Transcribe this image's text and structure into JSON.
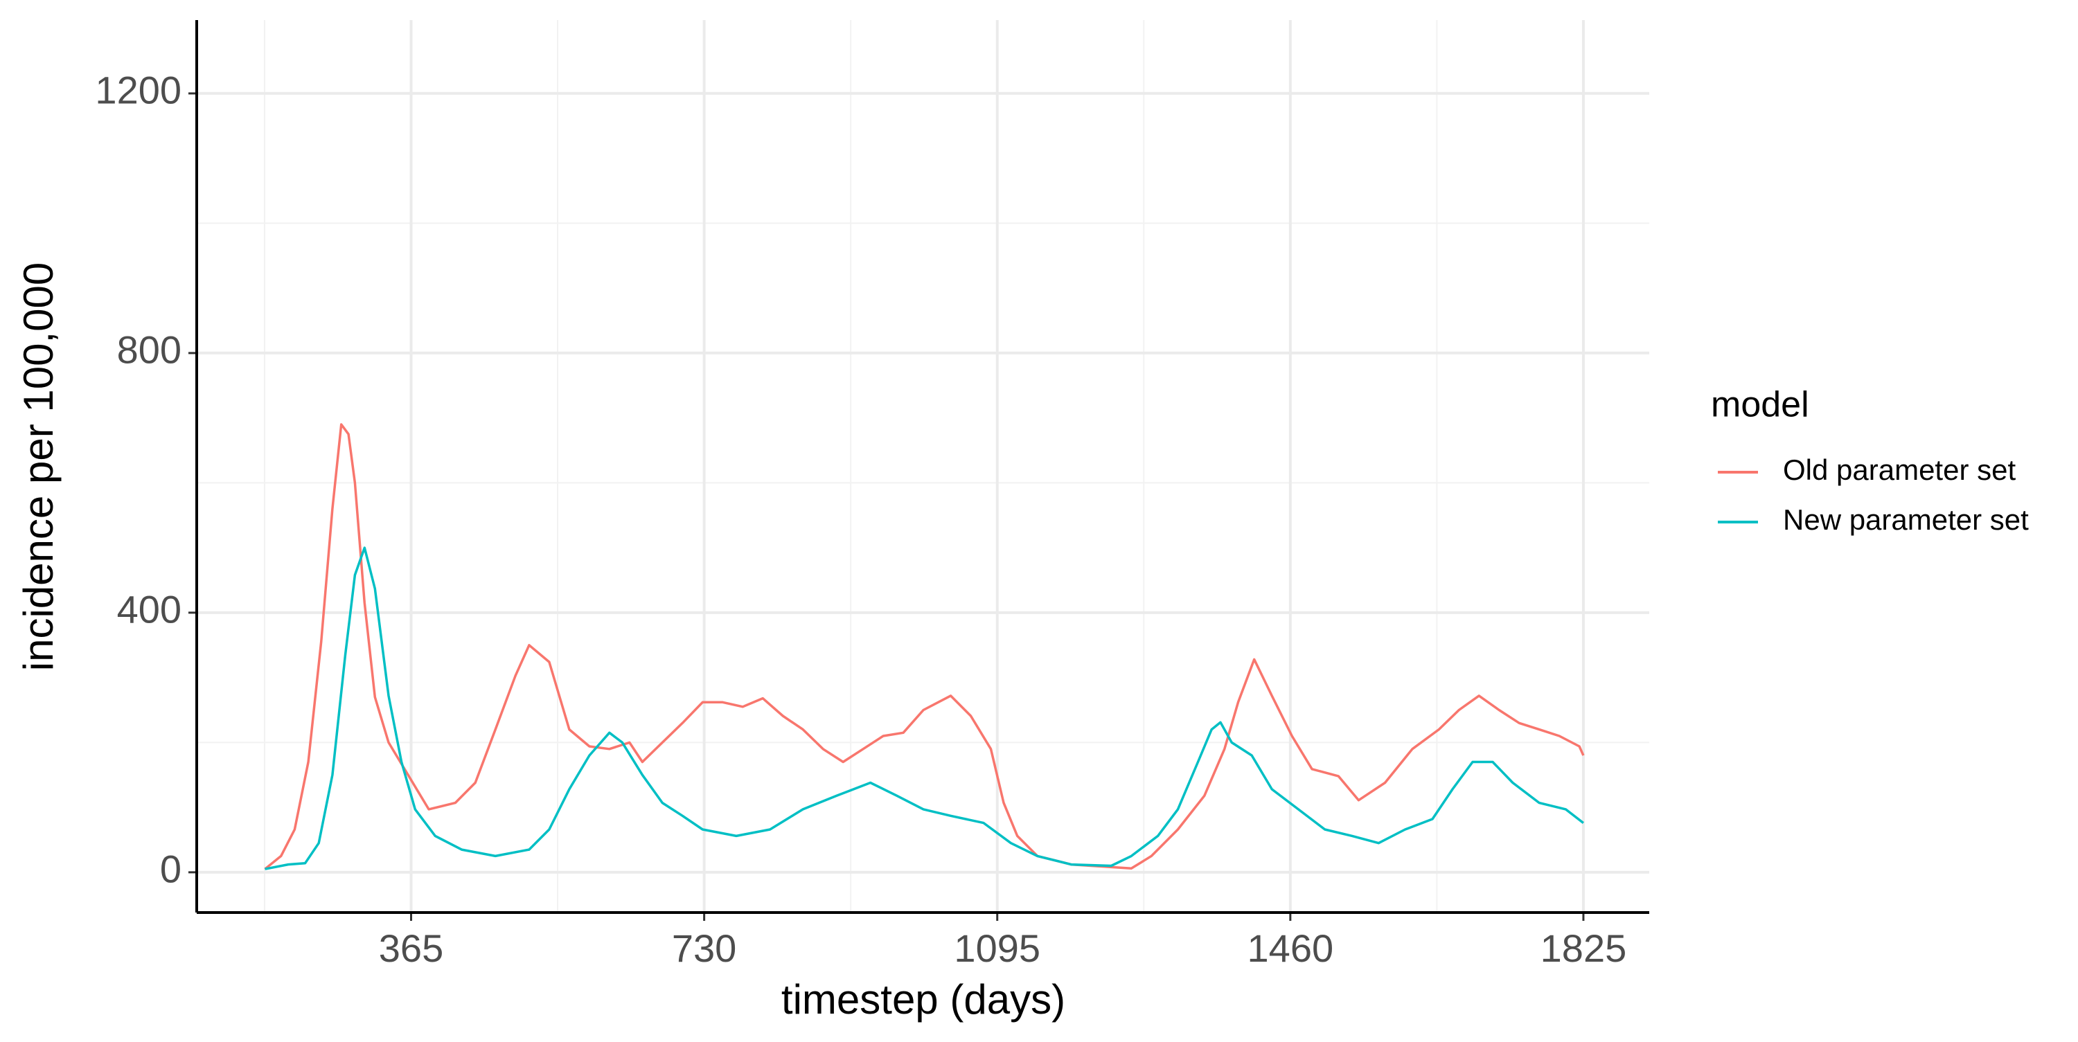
{
  "chart_data": {
    "type": "line",
    "x_label": "timestep (days)",
    "y_label": "incidence per 100,000",
    "legend_title": "model",
    "legend": "right",
    "grid": true,
    "xlim": [
      98,
      1907
    ],
    "ylim": [
      -62,
      1313
    ],
    "xticks": [
      365,
      730,
      1095,
      1460,
      1825
    ],
    "yticks": [
      0,
      400,
      800,
      1200
    ],
    "xminor_ticks": [
      182.5,
      547.5,
      912.5,
      1277.5,
      1642.5
    ],
    "yminor_ticks": [
      200,
      600,
      1000
    ],
    "series": [
      {
        "name": "Old parameter set",
        "color": "#F8766D",
        "x": [
          183,
          203,
          220,
          237,
          253,
          267,
          278,
          287,
          295,
          307,
          320,
          337,
          387,
          420,
          445,
          470,
          495,
          512,
          537,
          562,
          587,
          612,
          637,
          653,
          678,
          703,
          728,
          753,
          778,
          803,
          828,
          853,
          878,
          903,
          928,
          953,
          978,
          1003,
          1037,
          1062,
          1087,
          1103,
          1120,
          1145,
          1187,
          1237,
          1262,
          1287,
          1320,
          1353,
          1378,
          1395,
          1415,
          1437,
          1462,
          1487,
          1520,
          1545,
          1578,
          1612,
          1645,
          1670,
          1695,
          1720,
          1745,
          1770,
          1795,
          1820,
          1825
        ],
        "values": [
          5,
          25,
          66,
          170,
          355,
          560,
          690,
          675,
          600,
          415,
          270,
          200,
          97,
          107,
          138,
          220,
          303,
          350,
          324,
          220,
          194,
          190,
          200,
          170,
          200,
          230,
          262,
          262,
          255,
          268,
          241,
          220,
          190,
          170,
          190,
          210,
          215,
          250,
          272,
          241,
          190,
          107,
          56,
          25,
          12,
          8,
          6,
          25,
          66,
          118,
          190,
          262,
          328,
          272,
          210,
          159,
          148,
          111,
          138,
          190,
          220,
          250,
          272,
          250,
          230,
          220,
          210,
          194,
          180
        ]
      },
      {
        "name": "New parameter set",
        "color": "#00BFC4",
        "x": [
          183,
          212,
          233,
          250,
          267,
          283,
          295,
          307,
          320,
          337,
          353,
          370,
          395,
          428,
          470,
          512,
          537,
          562,
          587,
          612,
          628,
          653,
          678,
          703,
          728,
          770,
          812,
          853,
          895,
          937,
          970,
          1003,
          1037,
          1078,
          1112,
          1145,
          1187,
          1237,
          1262,
          1295,
          1320,
          1345,
          1362,
          1373,
          1387,
          1412,
          1437,
          1470,
          1503,
          1537,
          1570,
          1603,
          1637,
          1662,
          1687,
          1712,
          1737,
          1770,
          1803,
          1825
        ],
        "values": [
          5,
          12,
          14,
          45,
          150,
          335,
          458,
          500,
          437,
          272,
          170,
          97,
          56,
          35,
          25,
          35,
          66,
          128,
          180,
          215,
          200,
          150,
          107,
          87,
          66,
          56,
          66,
          97,
          118,
          138,
          118,
          97,
          87,
          76,
          45,
          25,
          12,
          10,
          25,
          56,
          97,
          170,
          220,
          231,
          200,
          180,
          128,
          97,
          66,
          56,
          45,
          66,
          82,
          128,
          170,
          170,
          138,
          107,
          97,
          76
        ]
      }
    ]
  }
}
